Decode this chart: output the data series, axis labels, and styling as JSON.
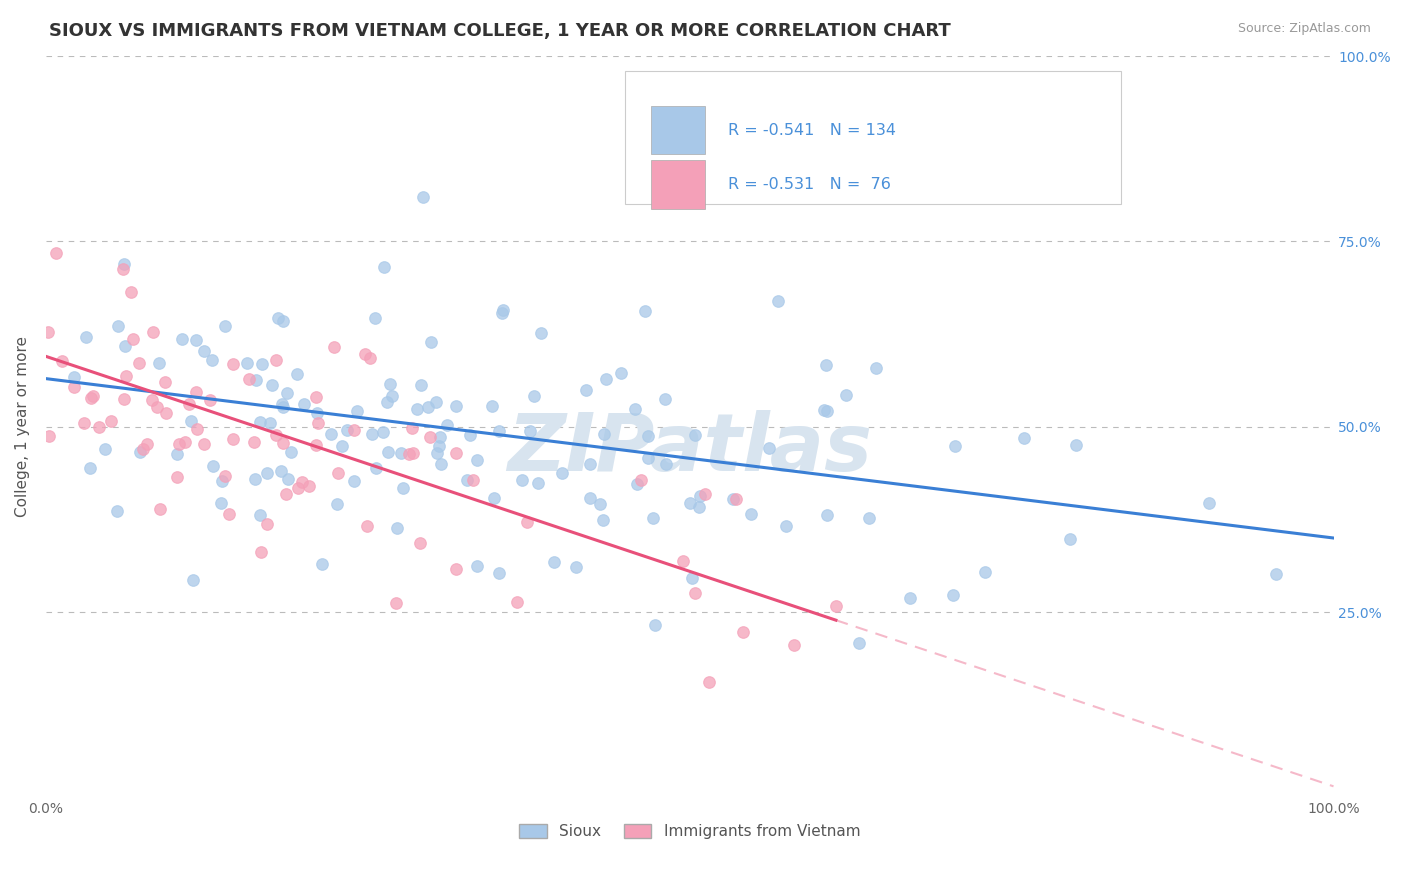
{
  "title": "SIOUX VS IMMIGRANTS FROM VIETNAM COLLEGE, 1 YEAR OR MORE CORRELATION CHART",
  "source_text": "Source: ZipAtlas.com",
  "ylabel": "College, 1 year or more",
  "xlim": [
    0.0,
    1.0
  ],
  "ylim": [
    0.0,
    1.0
  ],
  "y_tick_labels": [
    "25.0%",
    "50.0%",
    "75.0%",
    "100.0%"
  ],
  "y_tick_positions": [
    0.25,
    0.5,
    0.75,
    1.0
  ],
  "grid_color": "#bbbbbb",
  "background_color": "#ffffff",
  "watermark_text": "ZIPatlas",
  "watermark_color": "#d8e4ef",
  "series1_color": "#a8c8e8",
  "series2_color": "#f4a0b8",
  "line1_color": "#3a7fd5",
  "line2_color": "#e8507a",
  "legend_label1": "Sioux",
  "legend_label2": "Immigrants from Vietnam",
  "R1": -0.541,
  "N1": 134,
  "R2": -0.531,
  "N2": 76,
  "seed1": 42,
  "seed2": 77,
  "title_fontsize": 13,
  "label_fontsize": 11,
  "tick_fontsize": 10,
  "line1_intercept": 0.565,
  "line1_slope": -0.215,
  "line2_intercept": 0.595,
  "line2_slope": -0.58
}
